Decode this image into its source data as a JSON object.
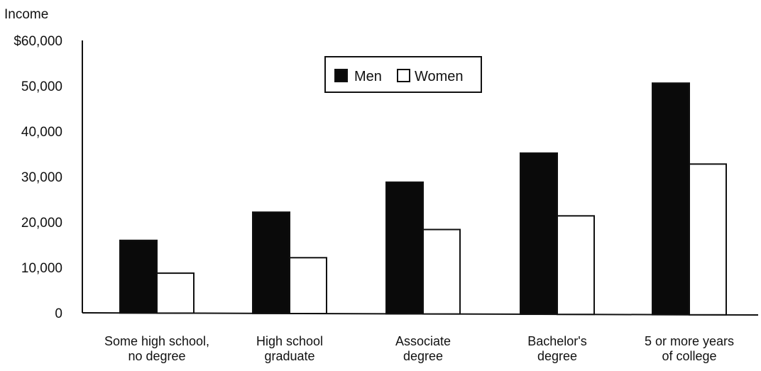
{
  "chart_data": {
    "type": "bar",
    "ylabel": "Income",
    "yticks": [
      "$60,000",
      "50,000",
      "40,000",
      "30,000",
      "20,000",
      "10,000",
      "0"
    ],
    "ylim": [
      0,
      60000
    ],
    "categories": [
      [
        "Some high school,",
        "no degree"
      ],
      [
        "High school",
        "graduate"
      ],
      [
        "Associate",
        "degree"
      ],
      [
        "Bachelor's",
        "degree"
      ],
      [
        "5 or more years",
        "of college"
      ]
    ],
    "series": [
      {
        "name": "Men",
        "color": "#0a0a0a",
        "values": [
          16000,
          22300,
          29000,
          35500,
          51000
        ]
      },
      {
        "name": "Women",
        "color": "#ffffff",
        "values": [
          8800,
          12300,
          18600,
          21700,
          33200
        ]
      }
    ],
    "legend": {
      "placement": "top-center"
    },
    "grid": false
  }
}
